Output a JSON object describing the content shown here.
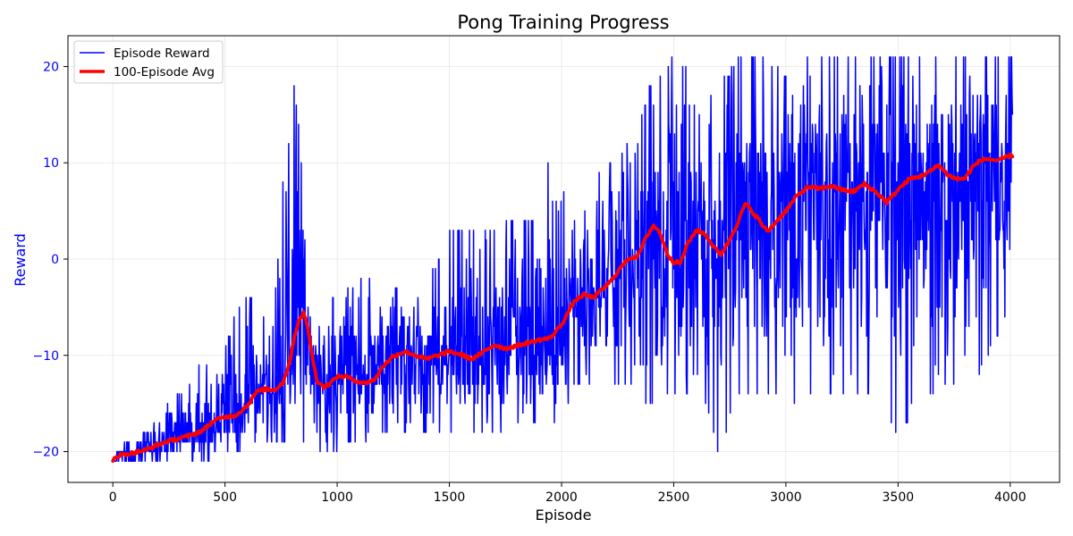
{
  "chart_data": {
    "type": "line",
    "title": "Pong Training Progress",
    "xlabel": "Episode",
    "ylabel": "Reward",
    "xlim": [
      -200,
      4220
    ],
    "ylim": [
      -23.2,
      23.2
    ],
    "x_ticks": [
      0,
      500,
      1000,
      1500,
      2000,
      2500,
      3000,
      3500,
      4000
    ],
    "y_ticks": [
      -20,
      -10,
      0,
      10,
      20
    ],
    "x_tick_labels": [
      "0",
      "500",
      "1000",
      "1500",
      "2000",
      "2500",
      "3000",
      "3500",
      "4000"
    ],
    "y_tick_labels": [
      "−20",
      "−10",
      "0",
      "10",
      "20"
    ],
    "grid": true,
    "legend_position": "top-left",
    "colors": {
      "episode": "#0000ff",
      "avg": "#ff0000",
      "ylabel": "#0000ff",
      "ytick": "#0000ff"
    },
    "series": [
      {
        "name": "Episode Reward",
        "style": "noisy",
        "x_start": 0,
        "x_end": 4010,
        "envelope": [
          [
            0,
            -21,
            -21
          ],
          [
            50,
            -21,
            -19
          ],
          [
            100,
            -21,
            -18
          ],
          [
            200,
            -21,
            -16
          ],
          [
            300,
            -21,
            -14
          ],
          [
            400,
            -21,
            -11
          ],
          [
            500,
            -20,
            -9
          ],
          [
            550,
            -20,
            -5
          ],
          [
            600,
            -19,
            -4
          ],
          [
            650,
            -19,
            -2
          ],
          [
            700,
            -19,
            -2
          ],
          [
            740,
            -19,
            12
          ],
          [
            770,
            -19,
            17
          ],
          [
            800,
            -17,
            19
          ],
          [
            830,
            -18,
            14
          ],
          [
            860,
            -19,
            1
          ],
          [
            880,
            -19,
            -6
          ],
          [
            900,
            -20,
            -9
          ],
          [
            950,
            -20,
            -5
          ],
          [
            1000,
            -20,
            -4
          ],
          [
            1100,
            -19,
            -2
          ],
          [
            1200,
            -18,
            -2
          ],
          [
            1300,
            -18,
            -3
          ],
          [
            1400,
            -18,
            -3
          ],
          [
            1500,
            -18,
            3
          ],
          [
            1600,
            -18,
            3
          ],
          [
            1700,
            -18,
            3
          ],
          [
            1800,
            -17,
            4
          ],
          [
            1900,
            -17,
            4
          ],
          [
            1950,
            -17,
            12
          ],
          [
            2000,
            -17,
            6
          ],
          [
            2050,
            -13,
            9
          ],
          [
            2100,
            -13,
            8
          ],
          [
            2200,
            -13,
            10
          ],
          [
            2300,
            -13,
            12
          ],
          [
            2400,
            -15,
            18
          ],
          [
            2500,
            -14,
            21
          ],
          [
            2550,
            -14,
            20
          ],
          [
            2600,
            -12,
            15
          ],
          [
            2700,
            -20,
            18
          ],
          [
            2800,
            -14,
            21
          ],
          [
            2900,
            -14,
            21
          ],
          [
            3000,
            -16,
            19
          ],
          [
            3100,
            -14,
            21
          ],
          [
            3200,
            -14,
            21
          ],
          [
            3300,
            -14,
            21
          ],
          [
            3400,
            -14,
            21
          ],
          [
            3500,
            -18,
            21
          ],
          [
            3600,
            -15,
            21
          ],
          [
            3700,
            -13,
            21
          ],
          [
            3800,
            -14,
            21
          ],
          [
            3900,
            -10,
            21
          ],
          [
            4010,
            -4,
            21
          ]
        ]
      },
      {
        "name": "100-Episode Avg",
        "style": "smooth",
        "points": [
          [
            0,
            -21
          ],
          [
            10,
            -20.5
          ],
          [
            50,
            -20.3
          ],
          [
            100,
            -20.1
          ],
          [
            150,
            -19.8
          ],
          [
            200,
            -19.3
          ],
          [
            250,
            -18.9
          ],
          [
            300,
            -18.6
          ],
          [
            350,
            -18.3
          ],
          [
            400,
            -17.8
          ],
          [
            450,
            -16.8
          ],
          [
            500,
            -16.4
          ],
          [
            550,
            -16.2
          ],
          [
            600,
            -15.2
          ],
          [
            640,
            -13.8
          ],
          [
            680,
            -13.5
          ],
          [
            720,
            -13.6
          ],
          [
            760,
            -12.8
          ],
          [
            790,
            -10.5
          ],
          [
            810,
            -8.0
          ],
          [
            830,
            -6.3
          ],
          [
            850,
            -5.6
          ],
          [
            870,
            -7.2
          ],
          [
            890,
            -10.3
          ],
          [
            910,
            -12.6
          ],
          [
            940,
            -13.3
          ],
          [
            970,
            -12.9
          ],
          [
            1000,
            -12.2
          ],
          [
            1040,
            -12.2
          ],
          [
            1080,
            -12.6
          ],
          [
            1120,
            -12.9
          ],
          [
            1170,
            -12.5
          ],
          [
            1200,
            -11.2
          ],
          [
            1250,
            -10.1
          ],
          [
            1300,
            -9.6
          ],
          [
            1350,
            -10.0
          ],
          [
            1400,
            -10.4
          ],
          [
            1450,
            -10.0
          ],
          [
            1500,
            -9.6
          ],
          [
            1550,
            -9.9
          ],
          [
            1600,
            -10.4
          ],
          [
            1650,
            -9.7
          ],
          [
            1700,
            -8.9
          ],
          [
            1750,
            -9.3
          ],
          [
            1800,
            -9.0
          ],
          [
            1850,
            -8.7
          ],
          [
            1900,
            -8.4
          ],
          [
            1950,
            -8.2
          ],
          [
            2000,
            -6.8
          ],
          [
            2030,
            -5.5
          ],
          [
            2060,
            -4.3
          ],
          [
            2100,
            -3.7
          ],
          [
            2140,
            -4.0
          ],
          [
            2180,
            -3.2
          ],
          [
            2220,
            -2.3
          ],
          [
            2260,
            -1.0
          ],
          [
            2300,
            0.1
          ],
          [
            2340,
            0.3
          ],
          [
            2380,
            2.4
          ],
          [
            2410,
            3.5
          ],
          [
            2440,
            2.7
          ],
          [
            2470,
            0.6
          ],
          [
            2500,
            -0.3
          ],
          [
            2530,
            -0.4
          ],
          [
            2560,
            1.5
          ],
          [
            2600,
            3.0
          ],
          [
            2640,
            2.6
          ],
          [
            2680,
            1.2
          ],
          [
            2710,
            0.5
          ],
          [
            2740,
            1.6
          ],
          [
            2780,
            3.5
          ],
          [
            2820,
            5.8
          ],
          [
            2850,
            4.9
          ],
          [
            2880,
            4.1
          ],
          [
            2900,
            3.3
          ],
          [
            2920,
            2.9
          ],
          [
            2950,
            3.7
          ],
          [
            2980,
            4.5
          ],
          [
            3010,
            5.3
          ],
          [
            3050,
            6.6
          ],
          [
            3100,
            7.5
          ],
          [
            3150,
            7.3
          ],
          [
            3200,
            7.6
          ],
          [
            3250,
            7.2
          ],
          [
            3300,
            7.0
          ],
          [
            3350,
            7.8
          ],
          [
            3400,
            7.0
          ],
          [
            3450,
            5.9
          ],
          [
            3500,
            7.2
          ],
          [
            3550,
            8.3
          ],
          [
            3600,
            8.6
          ],
          [
            3650,
            9.2
          ],
          [
            3680,
            9.8
          ],
          [
            3720,
            8.8
          ],
          [
            3760,
            8.3
          ],
          [
            3800,
            8.4
          ],
          [
            3830,
            9.5
          ],
          [
            3870,
            10.3
          ],
          [
            3900,
            10.4
          ],
          [
            3950,
            10.2
          ],
          [
            3980,
            10.6
          ],
          [
            4010,
            10.8
          ]
        ]
      }
    ]
  }
}
